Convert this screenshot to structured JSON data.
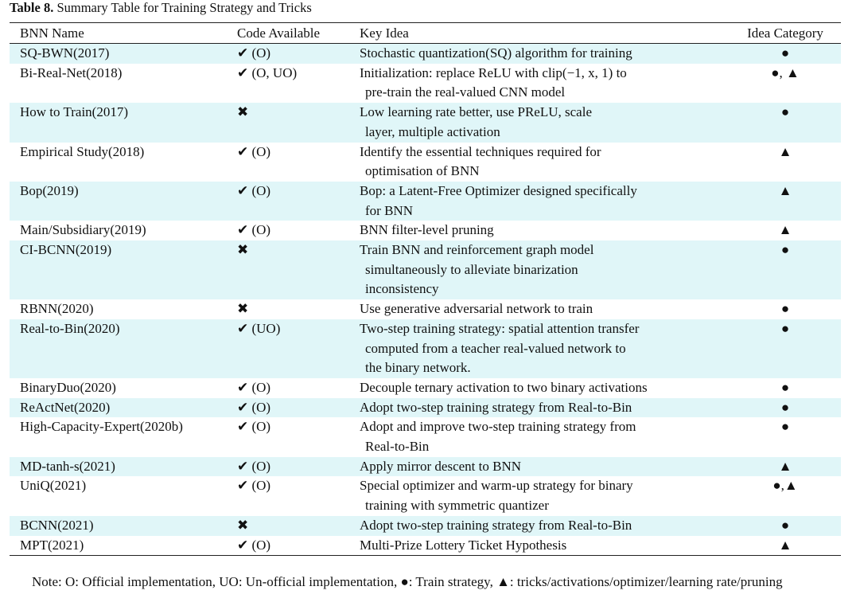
{
  "caption": {
    "label": "Table 8.",
    "text": "Summary Table for Training Strategy and Tricks"
  },
  "table": {
    "headers": [
      "BNN Name",
      "Code Available",
      "Key Idea",
      "Idea Category"
    ],
    "rows": [
      [
        "SQ-BWN(2017)",
        "✔ (O)",
        [
          "Stochastic quantization(SQ) algorithm for training"
        ],
        "●"
      ],
      [
        "Bi-Real-Net(2018)",
        "✔ (O, UO)",
        [
          "Initialization: replace ReLU with clip(−1, x, 1) to",
          "pre-train the real-valued CNN model"
        ],
        "●, ▲"
      ],
      [
        "How to Train(2017)",
        "✖",
        [
          "Low learning rate better, use PReLU, scale",
          "layer, multiple activation"
        ],
        "●"
      ],
      [
        "Empirical Study(2018)",
        "✔ (O)",
        [
          "Identify the essential techniques required for",
          "optimisation of BNN"
        ],
        "▲"
      ],
      [
        "Bop(2019)",
        "✔ (O)",
        [
          "Bop: a Latent-Free Optimizer designed specifically",
          "for BNN"
        ],
        "▲"
      ],
      [
        "Main/Subsidiary(2019)",
        "✔ (O)",
        [
          "BNN filter-level pruning"
        ],
        "▲"
      ],
      [
        "CI-BCNN(2019)",
        "✖",
        [
          "Train BNN and reinforcement graph model",
          "simultaneously to alleviate binarization",
          "inconsistency"
        ],
        "●"
      ],
      [
        "RBNN(2020)",
        "✖",
        [
          "Use generative adversarial network to train"
        ],
        "●"
      ],
      [
        "Real-to-Bin(2020)",
        "✔ (UO)",
        [
          "Two-step training strategy: spatial attention transfer",
          "computed from a teacher real-valued network to",
          "the binary network."
        ],
        "●"
      ],
      [
        "BinaryDuo(2020)",
        "✔ (O)",
        [
          "Decouple ternary activation to two binary activations"
        ],
        "●"
      ],
      [
        "ReActNet(2020)",
        "✔ (O)",
        [
          "Adopt two-step training strategy from Real-to-Bin"
        ],
        "●"
      ],
      [
        "High-Capacity-Expert(2020b)",
        "✔ (O)",
        [
          "Adopt and improve two-step training strategy from",
          "Real-to-Bin"
        ],
        "●"
      ],
      [
        "MD-tanh-s(2021)",
        "✔ (O)",
        [
          "Apply mirror descent to BNN"
        ],
        "▲"
      ],
      [
        "UniQ(2021)",
        "✔ (O)",
        [
          "Special optimizer and warm-up strategy for binary",
          "training with symmetric quantizer"
        ],
        "●,▲"
      ],
      [
        "BCNN(2021)",
        "✖",
        [
          "Adopt two-step training strategy from Real-to-Bin"
        ],
        "●"
      ],
      [
        "MPT(2021)",
        "✔ (O)",
        [
          "Multi-Prize Lottery Ticket Hypothesis"
        ],
        "▲"
      ]
    ]
  },
  "note": "Note: O: Official implementation, UO: Un-official implementation, ●: Train strategy, ▲: tricks/activations/optimizer/learning rate/pruning"
}
